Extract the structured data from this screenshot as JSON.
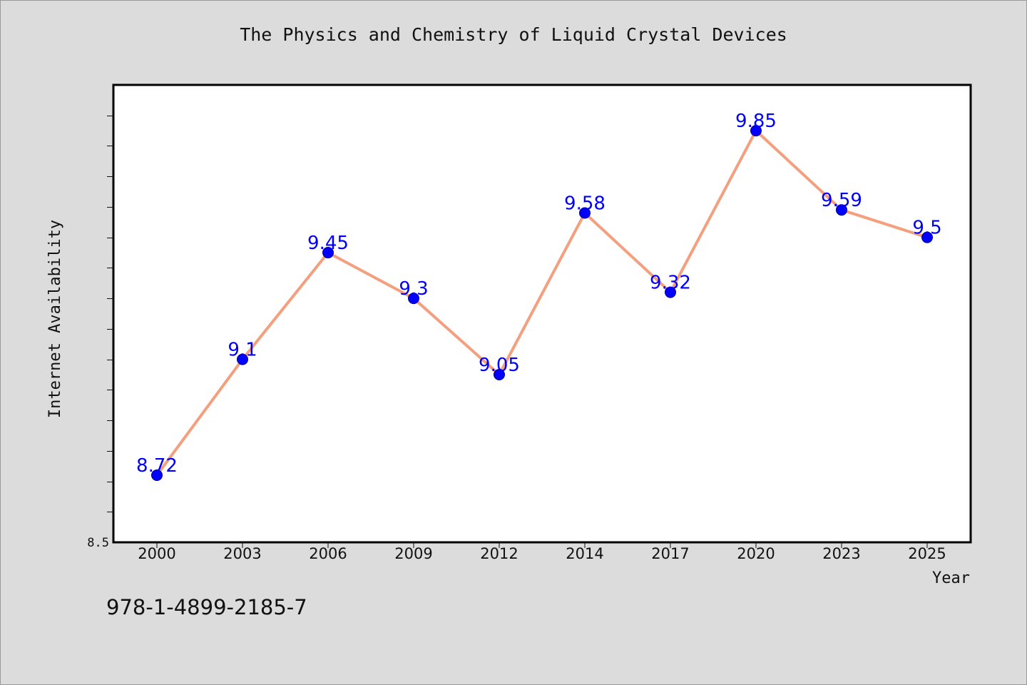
{
  "page": {
    "title": "The Physics and Chemistry of Liquid Crystal Devices",
    "footer_text": "978-1-4899-2185-7"
  },
  "colors": {
    "background": "#dcdcdc",
    "plot_background": "#ffffff",
    "line": "#f4a07e",
    "marker": "#0000ff",
    "data_label": "#0000ff"
  },
  "chart_data": {
    "type": "line",
    "title": "The Physics and Chemistry of Liquid Crystal Devices",
    "xlabel": "Year",
    "ylabel": "Internet Availability",
    "categories": [
      "2000",
      "2003",
      "2006",
      "2009",
      "2012",
      "2014",
      "2017",
      "2020",
      "2023",
      "2025"
    ],
    "series": [
      {
        "values": [
          8.72,
          9.1,
          9.45,
          9.3,
          9.05,
          9.58,
          9.32,
          9.85,
          9.59,
          9.5
        ],
        "data_labels": [
          "8.72",
          "9.1",
          "9.45",
          "9.3",
          "9.05",
          "9.58",
          "9.32",
          "9.85",
          "9.59",
          "9.5"
        ]
      }
    ],
    "ylim": [
      8.5,
      10.0
    ],
    "y_tick_labels": [
      "8.5"
    ],
    "y_minor_step": 0.1,
    "grid": false,
    "legend": "none"
  }
}
